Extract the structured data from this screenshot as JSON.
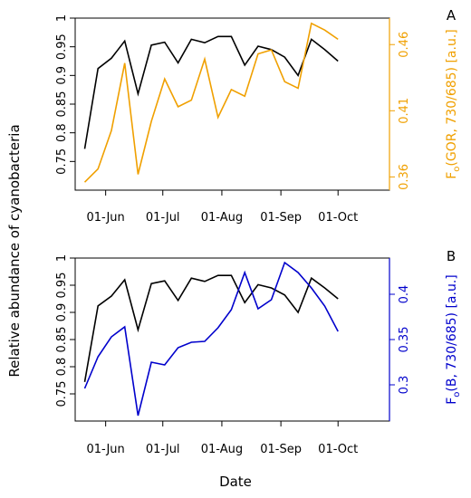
{
  "shared": {
    "ylabel": "Relative abundance of cyanobacteria",
    "xlabel": "Date"
  },
  "chart_data": [
    {
      "type": "line",
      "panel_label": "A",
      "x_ticks": [
        "01-Jun",
        "01-Jul",
        "01-Aug",
        "01-Sep",
        "01-Oct"
      ],
      "x": [
        "2011-05-21",
        "2011-05-28",
        "2011-06-04",
        "2011-06-11",
        "2011-06-18",
        "2011-06-25",
        "2011-07-02",
        "2011-07-09",
        "2011-07-16",
        "2011-07-23",
        "2011-07-30",
        "2011-08-06",
        "2011-08-13",
        "2011-08-20",
        "2011-08-27",
        "2011-09-03",
        "2011-09-10",
        "2011-09-17",
        "2011-09-24",
        "2011-10-01",
        "2011-10-08",
        "2011-10-15",
        "2011-10-22"
      ],
      "xlim": [
        "2011-05-16",
        "2011-10-28"
      ],
      "y_left": {
        "label": "Relative abundance of cyanobacteria",
        "ylim": [
          0.7,
          1.0
        ],
        "ticks": [
          "0.75",
          "0.8",
          "0.85",
          "0.9",
          "0.95",
          "1"
        ],
        "color": "#000000"
      },
      "y_right": {
        "label_main": "F",
        "label_sub": "o",
        "label_rest": "(GOR, 730/685) [a.u.]",
        "ylim": [
          0.35,
          0.48
        ],
        "ticks": [
          "0.36",
          "0.41",
          "0.46"
        ],
        "color": "#f0a000"
      },
      "series": [
        {
          "axis": "left",
          "color": "#000000",
          "values": [
            0.772,
            0.912,
            0.93,
            0.96,
            0.868,
            0.953,
            0.958,
            0.922,
            0.963,
            0.957,
            0.968,
            0.968,
            0.918,
            0.951,
            0.945,
            0.932,
            0.9,
            0.963,
            0.945,
            0.925,
            null,
            null,
            null
          ]
        },
        {
          "axis": "right",
          "color": "#f0a000",
          "values": [
            0.356,
            0.366,
            0.395,
            0.446,
            0.362,
            0.402,
            0.434,
            0.413,
            0.418,
            0.449,
            0.405,
            0.426,
            0.421,
            0.453,
            0.456,
            0.432,
            0.427,
            0.476,
            0.471,
            0.464,
            null,
            null,
            null
          ]
        }
      ]
    },
    {
      "type": "line",
      "panel_label": "B",
      "x_ticks": [
        "01-Jun",
        "01-Jul",
        "01-Aug",
        "01-Sep",
        "01-Oct"
      ],
      "xlim": [
        "2011-05-16",
        "2011-10-28"
      ],
      "y_left": {
        "label": "Relative abundance of cyanobacteria",
        "ylim": [
          0.7,
          1.0
        ],
        "ticks": [
          "0.75",
          "0.8",
          "0.85",
          "0.9",
          "0.95",
          "1"
        ],
        "color": "#000000"
      },
      "y_right": {
        "label_main": "F",
        "label_sub": "o",
        "label_rest": "(B, 730/685) [a.u.]",
        "ylim": [
          0.26,
          0.44
        ],
        "ticks": [
          "0.3",
          "0.35",
          "0.4"
        ],
        "color": "#0000cc"
      },
      "series": [
        {
          "axis": "left",
          "color": "#000000",
          "values": [
            0.772,
            0.912,
            0.93,
            0.96,
            0.868,
            0.953,
            0.958,
            0.922,
            0.963,
            0.957,
            0.968,
            0.968,
            0.918,
            0.951,
            0.945,
            0.932,
            0.9,
            0.963,
            0.945,
            0.925
          ]
        },
        {
          "axis": "right",
          "color": "#0000cc",
          "values": [
            0.296,
            0.331,
            0.353,
            0.364,
            0.266,
            0.325,
            0.322,
            0.341,
            0.347,
            0.348,
            0.363,
            0.383,
            0.424,
            0.384,
            0.394,
            0.435,
            0.424,
            0.407,
            0.387,
            0.359
          ]
        }
      ]
    }
  ]
}
